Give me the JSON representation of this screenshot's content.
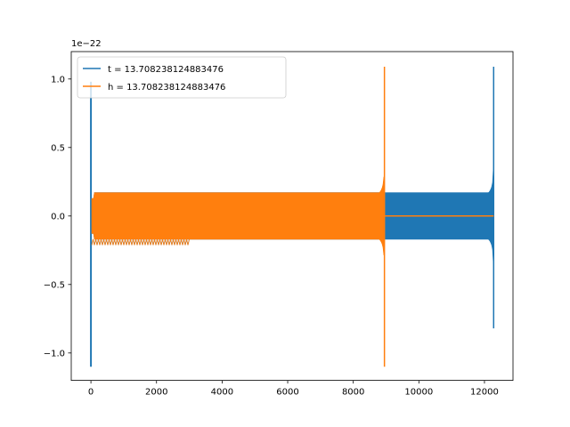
{
  "chart_data": {
    "type": "line",
    "offset_text": "1e−22",
    "xlim": [
      -600,
      12870
    ],
    "ylim": [
      -1.2,
      1.2
    ],
    "grid": false,
    "legend_position": "top-left",
    "x_ticks": [
      {
        "value": 0,
        "label": "0"
      },
      {
        "value": 2000,
        "label": "2000"
      },
      {
        "value": 4000,
        "label": "4000"
      },
      {
        "value": 6000,
        "label": "6000"
      },
      {
        "value": 8000,
        "label": "8000"
      },
      {
        "value": 10000,
        "label": "10000"
      },
      {
        "value": 12000,
        "label": "12000"
      }
    ],
    "y_ticks": [
      {
        "value": 1.0,
        "label": "1.0"
      },
      {
        "value": 0.5,
        "label": "0.5"
      },
      {
        "value": 0.0,
        "label": "0.0"
      },
      {
        "value": -0.5,
        "label": "−0.5"
      },
      {
        "value": -1.0,
        "label": "−1.0"
      }
    ],
    "series": [
      {
        "name": "t = 13.708238124883476",
        "color": "#1f77b4",
        "x_range": [
          0,
          12280
        ],
        "spike_start": {
          "x": 0,
          "max": 0.98,
          "min": -1.1
        },
        "steady_amplitude": 0.17,
        "chirp_peak": {
          "x": 12280,
          "max": 1.09,
          "min": -0.82
        }
      },
      {
        "name": "h = 13.708238124883476",
        "color": "#ff7f0e",
        "x_range": [
          0,
          8950
        ],
        "steady_amplitude": 0.17,
        "chirp_peak": {
          "x": 8950,
          "max": 1.09,
          "min": -1.1
        },
        "tail_value": 0.0,
        "tail_end_x": 12280
      }
    ]
  }
}
